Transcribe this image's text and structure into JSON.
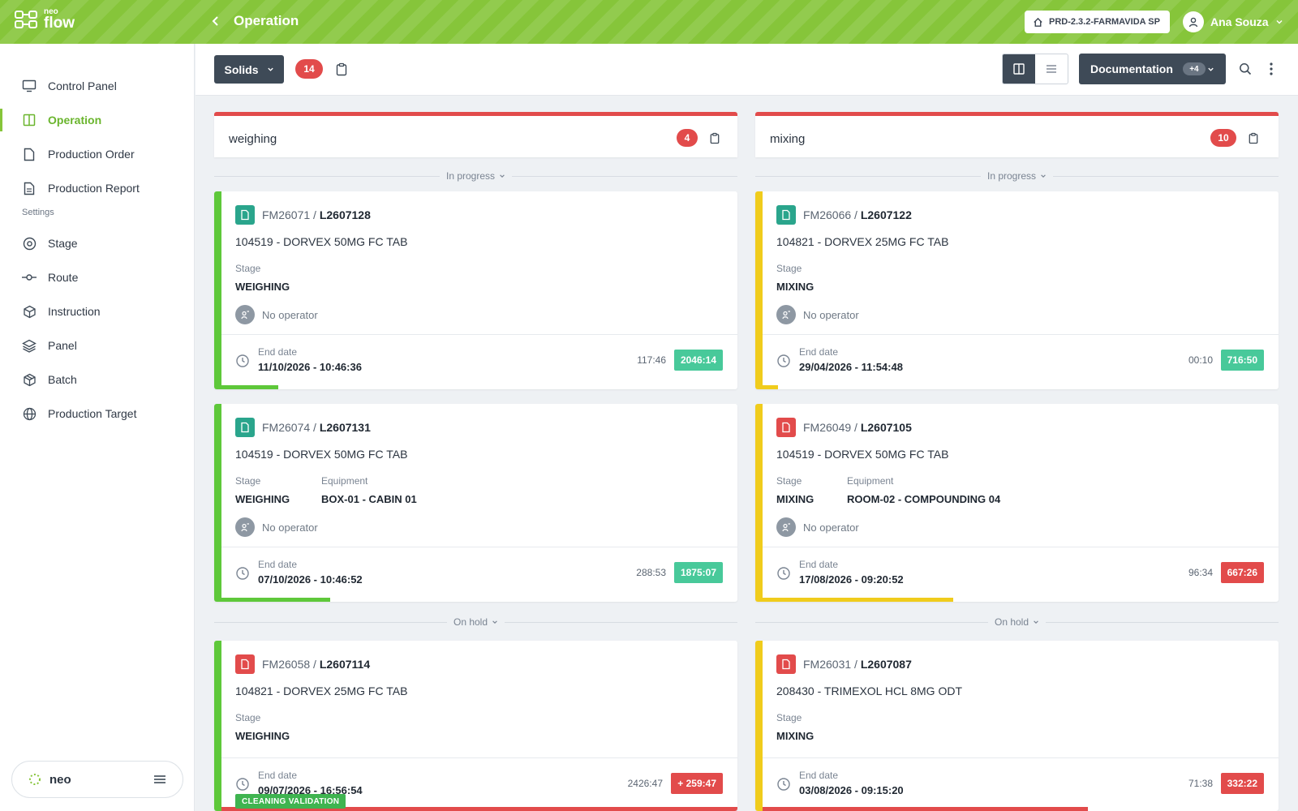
{
  "app": {
    "logo_small": "neo",
    "logo_big": "flow",
    "page_title": "Operation",
    "environment": "PRD-2.3.2-FARMAVIDA SP",
    "user_name": "Ana Souza",
    "accent_color": "#86c53a"
  },
  "sidebar": {
    "items": [
      {
        "label": "Control Panel",
        "icon": "monitor-icon"
      },
      {
        "label": "Operation",
        "icon": "columns-icon"
      },
      {
        "label": "Production Order",
        "icon": "file-icon"
      },
      {
        "label": "Production Report",
        "icon": "file-text-icon"
      }
    ],
    "settings_label": "Settings",
    "settings_items": [
      {
        "label": "Stage",
        "icon": "target-icon"
      },
      {
        "label": "Route",
        "icon": "route-icon"
      },
      {
        "label": "Instruction",
        "icon": "box-icon"
      },
      {
        "label": "Panel",
        "icon": "layers-icon"
      },
      {
        "label": "Batch",
        "icon": "package-icon"
      },
      {
        "label": "Production Target",
        "icon": "globe-icon"
      }
    ],
    "footer_brand": "neo"
  },
  "toolbar": {
    "group_label": "Solids",
    "total_count": "14",
    "documentation_label": "Documentation",
    "documentation_count": "+4"
  },
  "columns": [
    {
      "title": "weighing",
      "count": "4",
      "sections": [
        "In progress",
        "On hold"
      ],
      "cards": [
        {
          "order": "FM26071",
          "lot": "L2607128",
          "product": "104519 - DORVEX 50MG FC TAB",
          "stage_label": "Stage",
          "stage": "WEIGHING",
          "equipment_label": "",
          "equipment": "",
          "operator": "No operator",
          "end_label": "End date",
          "end_date": "11/10/2026 - 10:46:36",
          "elapsed": "117:46",
          "remaining": "2046:14",
          "doc_color": "#2aa58c",
          "bar_color": "#5ec83a",
          "badge_color": "#48c99a",
          "progress": 0.11,
          "progress_color": "#5ec83a",
          "tag": ""
        },
        {
          "order": "FM26074",
          "lot": "L2607131",
          "product": "104519 - DORVEX 50MG FC TAB",
          "stage_label": "Stage",
          "stage": "WEIGHING",
          "equipment_label": "Equipment",
          "equipment": "BOX-01 - CABIN 01",
          "operator": "No operator",
          "end_label": "End date",
          "end_date": "07/10/2026 - 10:46:52",
          "elapsed": "288:53",
          "remaining": "1875:07",
          "doc_color": "#2aa58c",
          "bar_color": "#5ec83a",
          "badge_color": "#48c99a",
          "progress": 0.21,
          "progress_color": "#5ec83a",
          "tag": ""
        },
        {
          "order": "FM26058",
          "lot": "L2607114",
          "product": "104821 - DORVEX 25MG FC TAB",
          "stage_label": "Stage",
          "stage": "WEIGHING",
          "equipment_label": "",
          "equipment": "",
          "operator": "",
          "end_label": "End date",
          "end_date": "09/07/2026 - 16:56:54",
          "elapsed": "2426:47",
          "remaining": "+ 259:47",
          "doc_color": "#e24b4b",
          "bar_color": "#5ec83a",
          "badge_color": "#e24b4b",
          "progress": 1.0,
          "progress_color": "#e24b4b",
          "tag": "CLEANING VALIDATION"
        }
      ]
    },
    {
      "title": "mixing",
      "count": "10",
      "sections": [
        "In progress",
        "On hold"
      ],
      "cards": [
        {
          "order": "FM26066",
          "lot": "L2607122",
          "product": "104821 - DORVEX 25MG FC TAB",
          "stage_label": "Stage",
          "stage": "MIXING",
          "equipment_label": "",
          "equipment": "",
          "operator": "No operator",
          "end_label": "End date",
          "end_date": "29/04/2026 - 11:54:48",
          "elapsed": "00:10",
          "remaining": "716:50",
          "doc_color": "#2aa58c",
          "bar_color": "#f0cc1c",
          "badge_color": "#48c99a",
          "progress": 0.03,
          "progress_color": "#f0cc1c",
          "tag": ""
        },
        {
          "order": "FM26049",
          "lot": "L2607105",
          "product": "104519 - DORVEX 50MG FC TAB",
          "stage_label": "Stage",
          "stage": "MIXING",
          "equipment_label": "Equipment",
          "equipment": "ROOM-02 - COMPOUNDING 04",
          "operator": "No operator",
          "end_label": "End date",
          "end_date": "17/08/2026 - 09:20:52",
          "elapsed": "96:34",
          "remaining": "667:26",
          "doc_color": "#e24b4b",
          "bar_color": "#f0cc1c",
          "badge_color": "#e24b4b",
          "progress": 0.37,
          "progress_color": "#f0cc1c",
          "tag": ""
        },
        {
          "order": "FM26031",
          "lot": "L2607087",
          "product": "208430 - TRIMEXOL HCL 8MG ODT",
          "stage_label": "Stage",
          "stage": "MIXING",
          "equipment_label": "",
          "equipment": "",
          "operator": "",
          "end_label": "End date",
          "end_date": "03/08/2026 - 09:15:20",
          "elapsed": "71:38",
          "remaining": "332:22",
          "doc_color": "#e24b4b",
          "bar_color": "#f0cc1c",
          "badge_color": "#e24b4b",
          "progress": 0.63,
          "progress_color": "#e24b4b",
          "tag": ""
        }
      ]
    }
  ]
}
